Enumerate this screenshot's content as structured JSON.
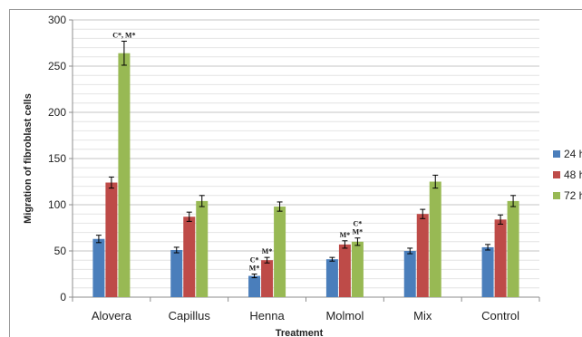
{
  "chart_data": {
    "type": "bar",
    "title": "",
    "xlabel": "Treatment",
    "ylabel": "Migration of fibroblast cells",
    "ylim": [
      0,
      300
    ],
    "yticks": [
      0,
      50,
      100,
      150,
      200,
      250,
      300
    ],
    "grid": true,
    "legend_position": "right",
    "categories": [
      "Alovera",
      "Capillus",
      "Henna",
      "Molmol",
      "Mix",
      "Control"
    ],
    "series": [
      {
        "name": "24 h",
        "color": "#4a7ebb",
        "values": [
          63,
          51,
          23,
          41,
          50,
          54
        ],
        "errors": [
          4,
          3,
          2,
          2,
          3,
          3
        ]
      },
      {
        "name": "48 h",
        "color": "#be4b48",
        "values": [
          124,
          87,
          40,
          57,
          90,
          84
        ],
        "errors": [
          6,
          5,
          3,
          4,
          5,
          5
        ]
      },
      {
        "name": "72 h",
        "color": "#98b954",
        "values": [
          264,
          104,
          98,
          60,
          125,
          104
        ],
        "errors": [
          13,
          6,
          5,
          4,
          7,
          6
        ]
      }
    ],
    "annotations": [
      {
        "category": "Alovera",
        "series": "72 h",
        "lines": [
          "C*, M*"
        ]
      },
      {
        "category": "Henna",
        "series": "24 h",
        "lines": [
          "C*",
          "M*"
        ]
      },
      {
        "category": "Henna",
        "series": "48 h",
        "lines": [
          "M*"
        ]
      },
      {
        "category": "Molmol",
        "series": "48 h",
        "lines": [
          "M*"
        ]
      },
      {
        "category": "Molmol",
        "series": "72 h",
        "lines": [
          "C*",
          "M*"
        ]
      }
    ]
  }
}
